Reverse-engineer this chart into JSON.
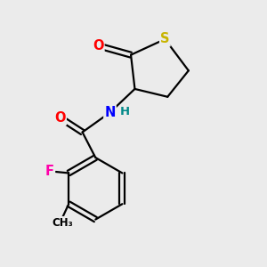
{
  "background_color": "#ebebeb",
  "atom_colors": {
    "S": "#c8b400",
    "O": "#ff0000",
    "N": "#0000ff",
    "F": "#ff00aa",
    "C": "#000000",
    "H": "#008888"
  },
  "bond_color": "#000000",
  "bond_width": 1.6,
  "figsize": [
    3.0,
    3.0
  ],
  "dpi": 100
}
